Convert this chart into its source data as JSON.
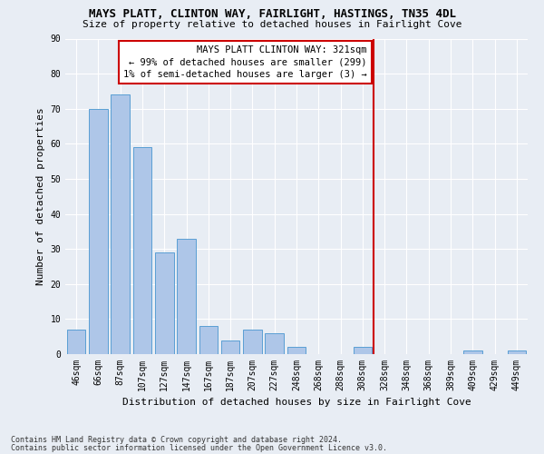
{
  "title": "MAYS PLATT, CLINTON WAY, FAIRLIGHT, HASTINGS, TN35 4DL",
  "subtitle": "Size of property relative to detached houses in Fairlight Cove",
  "xlabel": "Distribution of detached houses by size in Fairlight Cove",
  "ylabel": "Number of detached properties",
  "footnote1": "Contains HM Land Registry data © Crown copyright and database right 2024.",
  "footnote2": "Contains public sector information licensed under the Open Government Licence v3.0.",
  "categories": [
    "46sqm",
    "66sqm",
    "87sqm",
    "107sqm",
    "127sqm",
    "147sqm",
    "167sqm",
    "187sqm",
    "207sqm",
    "227sqm",
    "248sqm",
    "268sqm",
    "288sqm",
    "308sqm",
    "328sqm",
    "348sqm",
    "368sqm",
    "389sqm",
    "409sqm",
    "429sqm",
    "449sqm"
  ],
  "values": [
    7,
    70,
    74,
    59,
    29,
    33,
    8,
    4,
    7,
    6,
    2,
    0,
    0,
    2,
    0,
    0,
    0,
    0,
    1,
    0,
    1
  ],
  "bar_color": "#aec6e8",
  "bar_edge_color": "#5a9fd4",
  "background_color": "#e8edf4",
  "plot_bg_color": "#dce4f0",
  "grid_color": "#ffffff",
  "vline_color": "#cc0000",
  "vline_pos": 13.5,
  "annotation_text": "MAYS PLATT CLINTON WAY: 321sqm\n← 99% of detached houses are smaller (299)\n1% of semi-detached houses are larger (3) →",
  "annotation_box_color": "#ffffff",
  "annotation_box_edge_color": "#cc0000",
  "ylim": [
    0,
    90
  ],
  "yticks": [
    0,
    10,
    20,
    30,
    40,
    50,
    60,
    70,
    80,
    90
  ],
  "title_fontsize": 9.0,
  "subtitle_fontsize": 8.0,
  "tick_fontsize": 7.0,
  "ylabel_fontsize": 8.0,
  "xlabel_fontsize": 8.0,
  "footnote_fontsize": 6.0,
  "ann_fontsize": 7.5
}
